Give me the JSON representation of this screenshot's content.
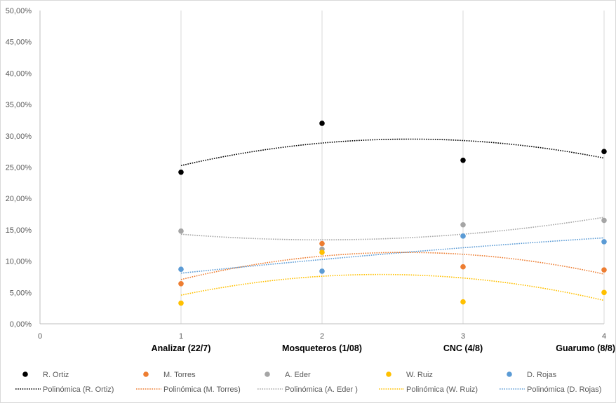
{
  "chart_data": {
    "type": "scatter",
    "title": "",
    "xlabel": "",
    "ylabel": "",
    "xlim": [
      0,
      4
    ],
    "ylim": [
      0,
      0.5
    ],
    "x_ticks": [
      "0",
      "1",
      "2",
      "3",
      "4"
    ],
    "y_ticks": [
      "0,00%",
      "5,00%",
      "10,00%",
      "15,00%",
      "20,00%",
      "25,00%",
      "30,00%",
      "35,00%",
      "40,00%",
      "45,00%",
      "50,00%"
    ],
    "x_categories": [
      {
        "x": 1,
        "label": "Analizar (22/7)"
      },
      {
        "x": 2,
        "label": "Mosqueteros (1/08)"
      },
      {
        "x": 3,
        "label": "CNC (4/8)"
      },
      {
        "x": 4,
        "label": "Guarumo (8/8)"
      }
    ],
    "grid": "vertical",
    "legend_position": "bottom",
    "series": [
      {
        "name": "R. Ortiz",
        "color": "#000000",
        "x": [
          1,
          2,
          3,
          4
        ],
        "y": [
          0.242,
          0.32,
          0.261,
          0.275
        ]
      },
      {
        "name": "M. Torres",
        "color": "#ed7d31",
        "x": [
          1,
          2,
          3,
          4
        ],
        "y": [
          0.064,
          0.128,
          0.091,
          0.086
        ]
      },
      {
        "name": "A. Eder",
        "color": "#a5a5a5",
        "x": [
          1,
          2,
          3,
          4
        ],
        "y": [
          0.148,
          0.119,
          0.158,
          0.165
        ]
      },
      {
        "name": "W. Ruiz",
        "color": "#ffc000",
        "x": [
          1,
          2,
          3,
          4
        ],
        "y": [
          0.033,
          0.114,
          0.035,
          0.05
        ]
      },
      {
        "name": "D. Rojas",
        "color": "#5b9bd5",
        "x": [
          1,
          2,
          3,
          4
        ],
        "y": [
          0.087,
          0.084,
          0.14,
          0.131
        ]
      }
    ],
    "trendlines": [
      {
        "name": "Polinómica (R. Ortiz)",
        "color": "#000000",
        "type": "polynomial",
        "order": 2
      },
      {
        "name": "Polinómica (M. Torres)",
        "color": "#ed7d31",
        "type": "polynomial",
        "order": 2
      },
      {
        "name": "Polinómica (A. Eder )",
        "color": "#a5a5a5",
        "type": "polynomial",
        "order": 2
      },
      {
        "name": "Polinómica (W. Ruiz)",
        "color": "#ffc000",
        "type": "polynomial",
        "order": 2
      },
      {
        "name": "Polinómica (D. Rojas)",
        "color": "#5b9bd5",
        "type": "polynomial",
        "order": 2
      }
    ]
  }
}
